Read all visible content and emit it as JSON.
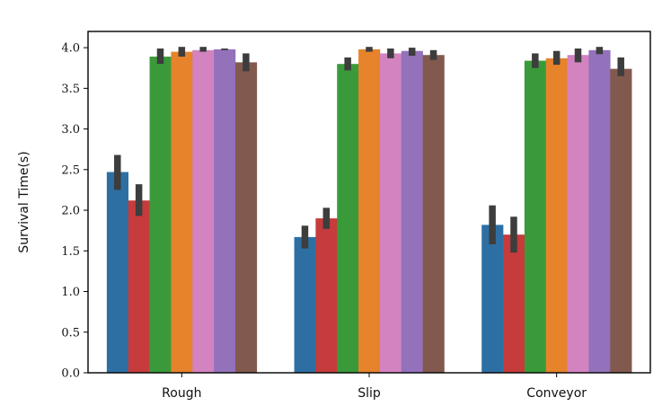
{
  "chart_data": {
    "type": "bar",
    "title": "",
    "xlabel": "",
    "ylabel": "Survival Time(s)",
    "ylim": [
      0,
      4.2
    ],
    "yticks": [
      "0.0",
      "0.5",
      "1.0",
      "1.5",
      "2.0",
      "2.5",
      "3.0",
      "3.5",
      "4.0"
    ],
    "categories": [
      "Rough",
      "Slip",
      "Conveyor"
    ],
    "grid": false,
    "legend": "none",
    "series": [
      {
        "color": "#2e6fa3",
        "values": [
          2.47,
          1.67,
          1.82
        ],
        "err_low": [
          2.25,
          1.53,
          1.58
        ],
        "err_high": [
          2.68,
          1.81,
          2.06
        ]
      },
      {
        "color": "#c63b3b",
        "values": [
          2.12,
          1.9,
          1.7
        ],
        "err_low": [
          1.93,
          1.77,
          1.48
        ],
        "err_high": [
          2.32,
          2.03,
          1.92
        ]
      },
      {
        "color": "#3a9a3a",
        "values": [
          3.89,
          3.8,
          3.84
        ],
        "err_low": [
          3.8,
          3.72,
          3.75
        ],
        "err_high": [
          3.99,
          3.88,
          3.93
        ]
      },
      {
        "color": "#e6832b",
        "values": [
          3.95,
          3.98,
          3.87
        ],
        "err_low": [
          3.89,
          3.95,
          3.79
        ],
        "err_high": [
          4.01,
          4.01,
          3.96
        ]
      },
      {
        "color": "#d283c0",
        "values": [
          3.97,
          3.93,
          3.91
        ],
        "err_low": [
          3.95,
          3.87,
          3.82
        ],
        "err_high": [
          4.01,
          3.99,
          3.99
        ]
      },
      {
        "color": "#9371bb",
        "values": [
          3.98,
          3.96,
          3.97
        ],
        "err_low": [
          3.97,
          3.9,
          3.92
        ],
        "err_high": [
          3.99,
          4.0,
          4.01
        ]
      },
      {
        "color": "#82594e",
        "values": [
          3.82,
          3.91,
          3.74
        ],
        "err_low": [
          3.71,
          3.85,
          3.65
        ],
        "err_high": [
          3.93,
          3.97,
          3.88
        ]
      }
    ]
  }
}
